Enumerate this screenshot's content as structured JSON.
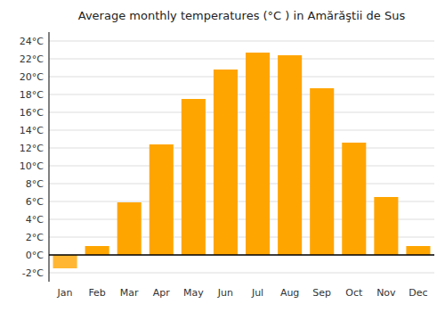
{
  "chart_data": {
    "type": "bar",
    "title": "Average monthly temperatures (°C ) in Amărăştii de Sus",
    "categories": [
      "Jan",
      "Feb",
      "Mar",
      "Apr",
      "May",
      "Jun",
      "Jul",
      "Aug",
      "Sep",
      "Oct",
      "Nov",
      "Dec"
    ],
    "values": [
      -1.5,
      1.0,
      5.9,
      12.4,
      17.5,
      20.8,
      22.7,
      22.4,
      18.7,
      12.6,
      6.5,
      1.0
    ],
    "colors": [
      "#FFB733",
      "#FFA500",
      "#FFA500",
      "#FFA500",
      "#FFA500",
      "#FFA500",
      "#FFA500",
      "#FFA500",
      "#FFA500",
      "#FFA500",
      "#FFA500",
      "#FFA500"
    ],
    "ylim": [
      -3,
      25
    ],
    "yticks": [
      {
        "value": -2,
        "label": "-2°C"
      },
      {
        "value": 0,
        "label": "0°C"
      },
      {
        "value": 2,
        "label": "2°C"
      },
      {
        "value": 4,
        "label": "4°C"
      },
      {
        "value": 6,
        "label": "6°C"
      },
      {
        "value": 8,
        "label": "8°C"
      },
      {
        "value": 10,
        "label": "10°C"
      },
      {
        "value": 12,
        "label": "12°C"
      },
      {
        "value": 14,
        "label": "14°C"
      },
      {
        "value": 16,
        "label": "16°C"
      },
      {
        "value": 18,
        "label": "18°C"
      },
      {
        "value": 20,
        "label": "20°C"
      },
      {
        "value": 22,
        "label": "22°C"
      },
      {
        "value": 24,
        "label": "24°C"
      }
    ],
    "grid": true
  }
}
